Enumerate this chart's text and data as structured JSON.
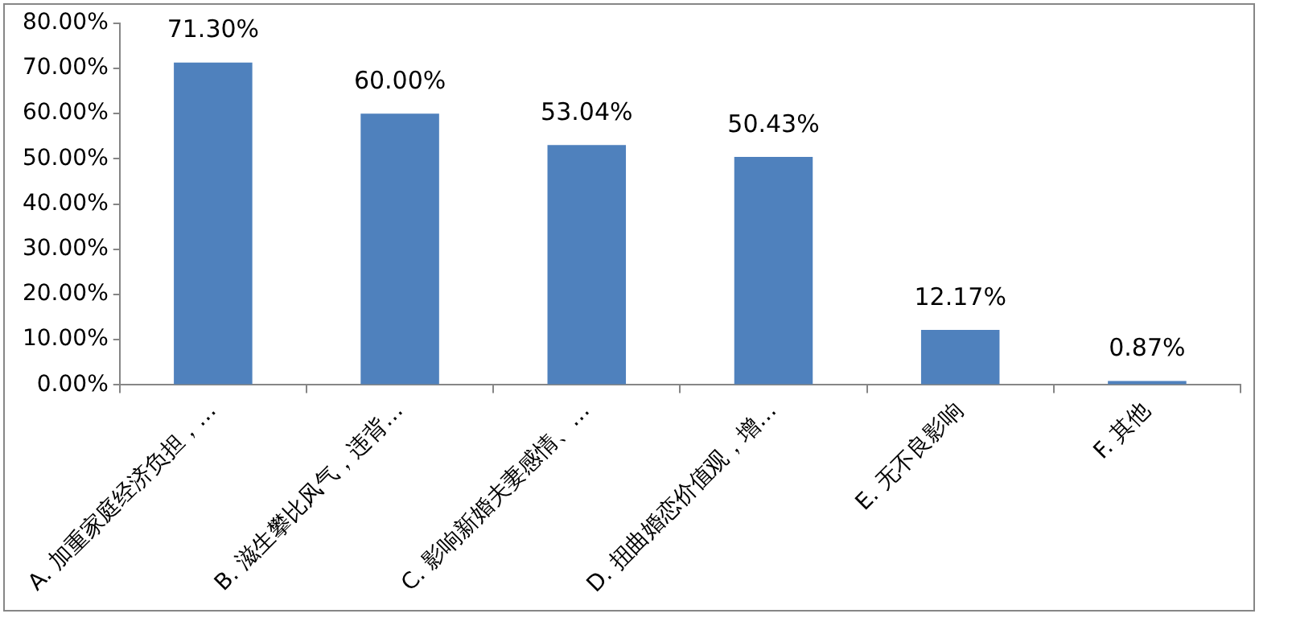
{
  "chart_data": {
    "type": "bar",
    "categories": [
      "A. 加重家庭经济负担，…",
      "B. 滋生攀比风气，违背…",
      "C. 影响新婚夫妻感情、…",
      "D. 扭曲婚恋价值观，增…",
      "E. 无不良影响",
      "F. 其他"
    ],
    "values": [
      71.3,
      60.0,
      53.04,
      50.43,
      12.17,
      0.87
    ],
    "value_labels": [
      "71.30%",
      "60.00%",
      "53.04%",
      "50.43%",
      "12.17%",
      "0.87%"
    ],
    "color": "#4f81bd",
    "ylim": [
      0,
      80
    ],
    "yticks": [
      {
        "value": 0,
        "label": "0.00%"
      },
      {
        "value": 10,
        "label": "10.00%"
      },
      {
        "value": 20,
        "label": "20.00%"
      },
      {
        "value": 30,
        "label": "30.00%"
      },
      {
        "value": 40,
        "label": "40.00%"
      },
      {
        "value": 50,
        "label": "50.00%"
      },
      {
        "value": 60,
        "label": "60.00%"
      },
      {
        "value": 70,
        "label": "70.00%"
      },
      {
        "value": 80,
        "label": "80.00%"
      }
    ],
    "grid": false,
    "legend": false
  }
}
